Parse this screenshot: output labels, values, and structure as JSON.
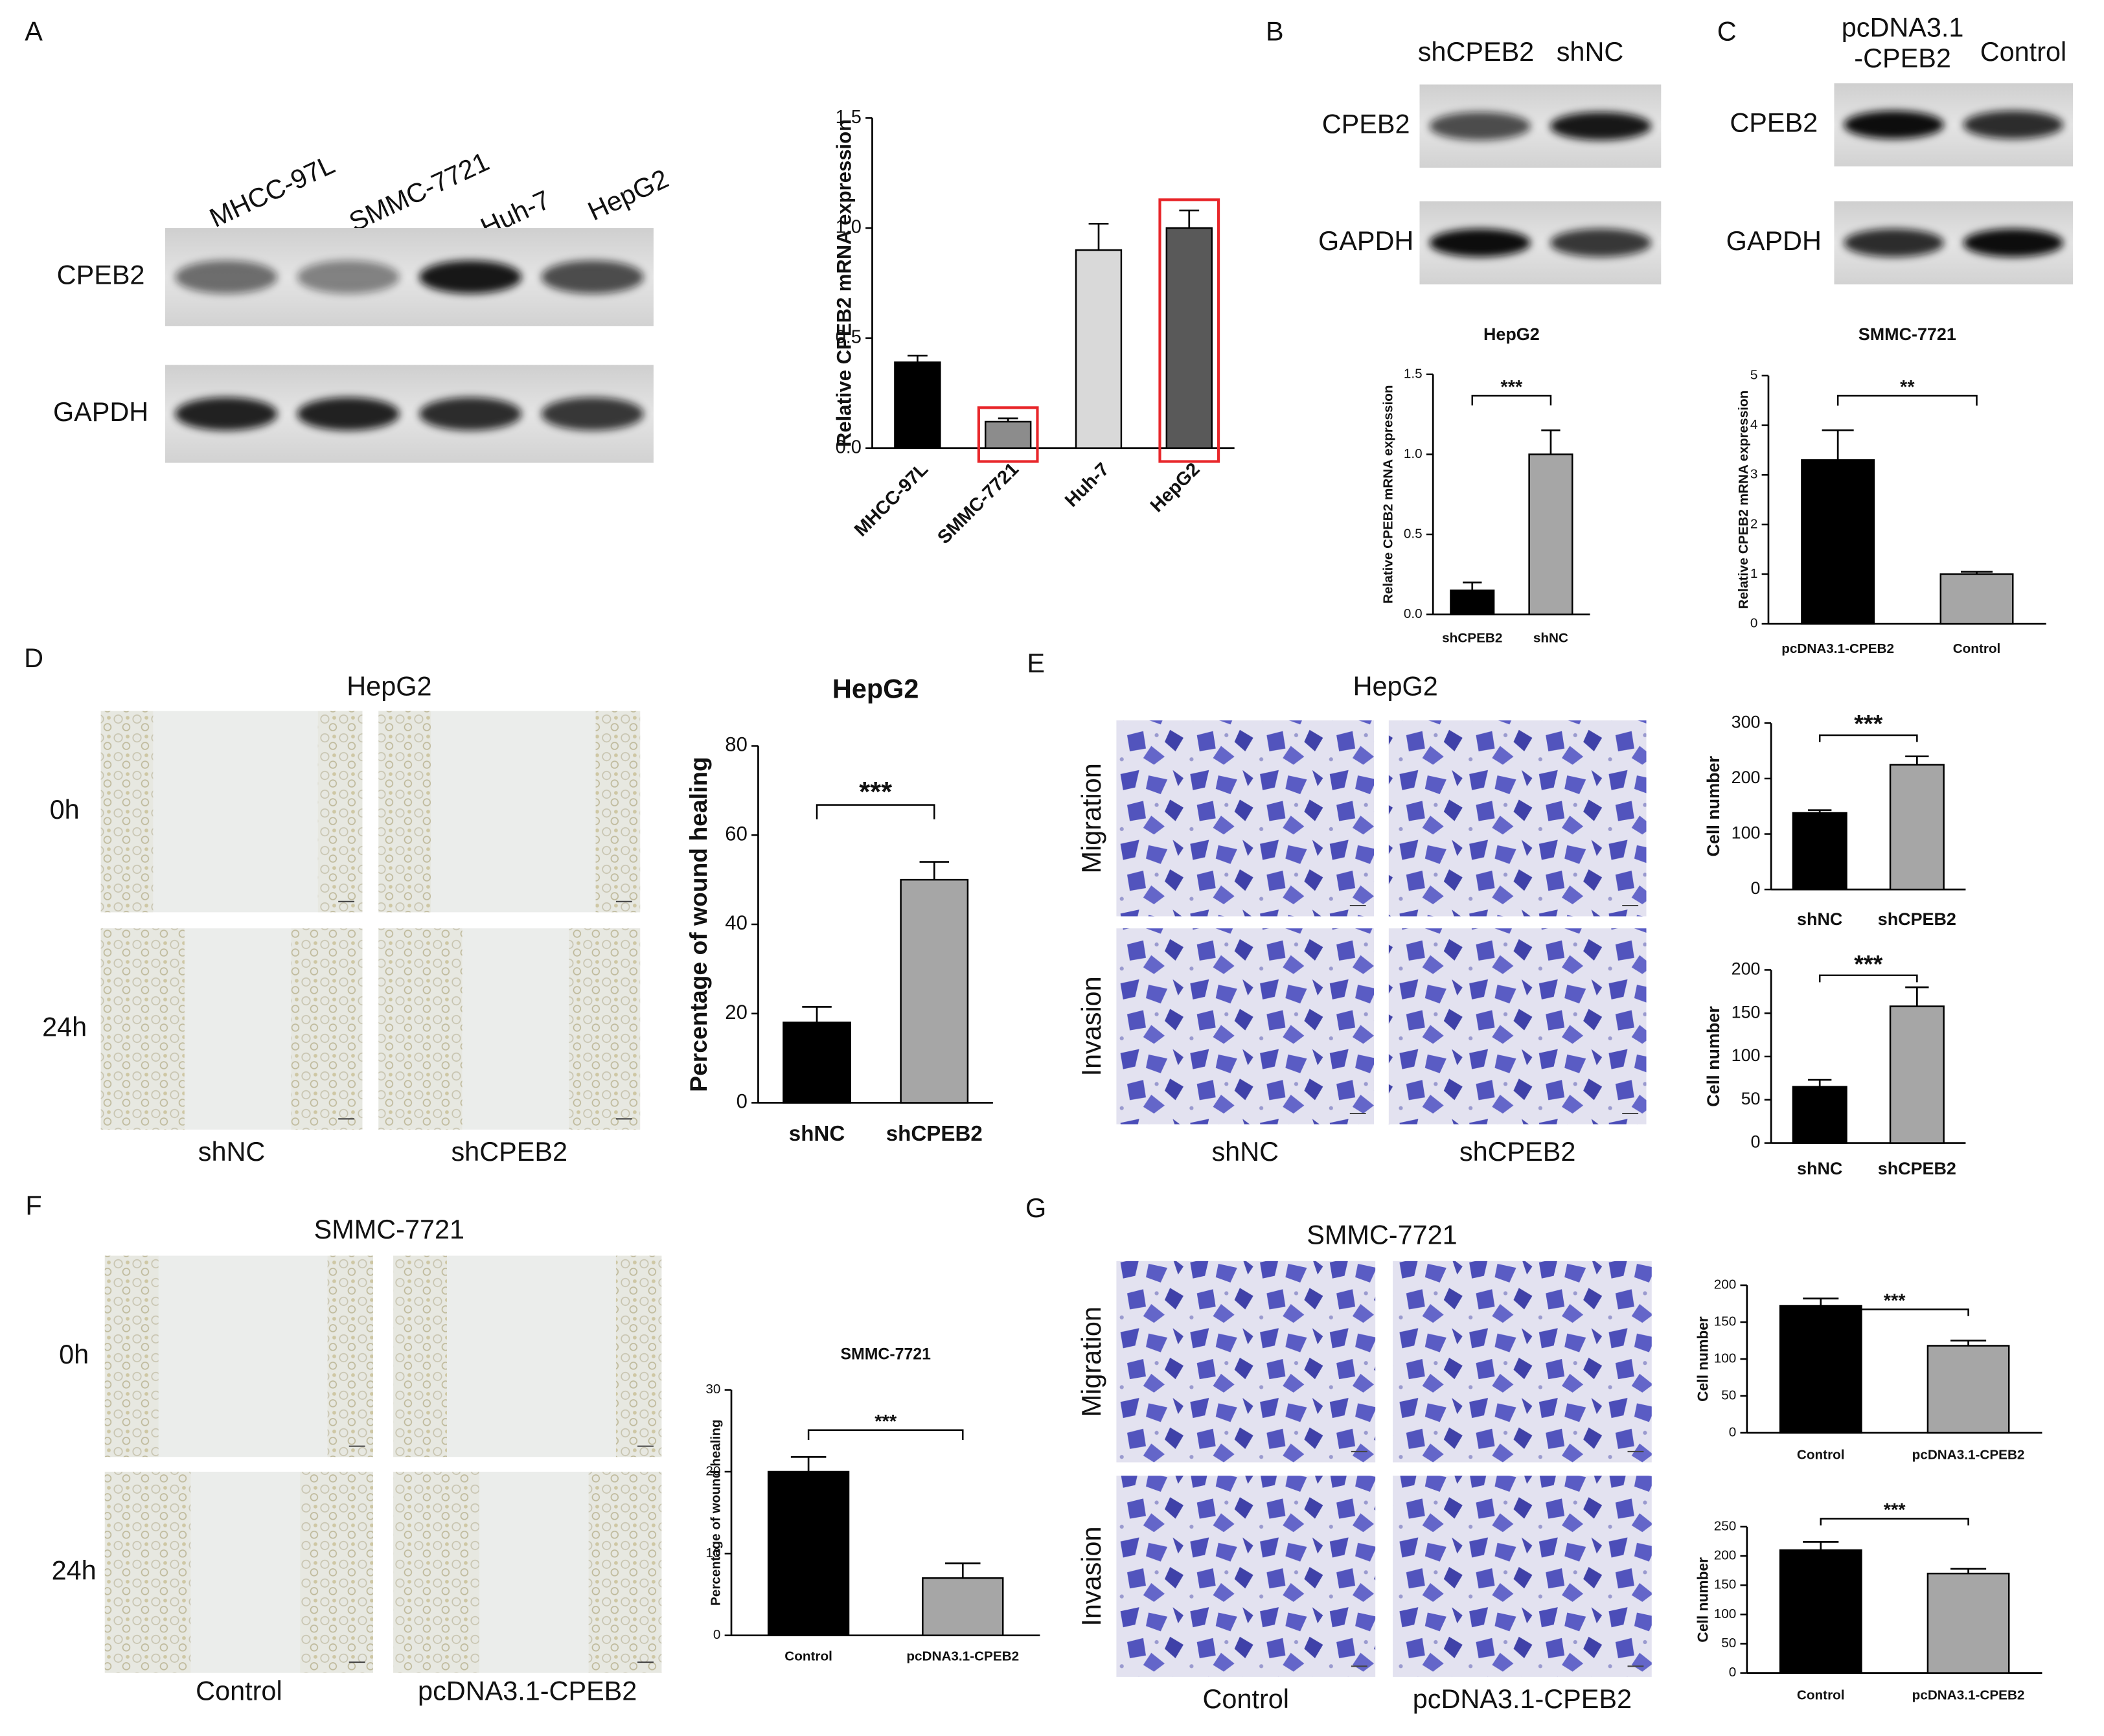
{
  "chart_data": [
    {
      "type": "bar",
      "y_label": "Relative CPEB2 mRNA expression",
      "categories": [
        "MHCC-97L",
        "SMMC-7721",
        "Huh-7",
        "HepG2"
      ],
      "values": [
        0.39,
        0.12,
        0.9,
        1.0
      ],
      "errors": [
        0.03,
        0.015,
        0.12,
        0.08
      ],
      "colors": [
        "#000000",
        "#8c8c8c",
        "#d9d9d9",
        "#595959"
      ],
      "ylim": [
        0,
        1.5
      ],
      "yticks": [
        {
          "value": 0,
          "label": "0.0"
        },
        {
          "value": 0.5,
          "label": "0.5"
        },
        {
          "value": 1,
          "label": "1.0"
        },
        {
          "value": 1.5,
          "label": "1.5"
        }
      ],
      "highlight": [
        1,
        3
      ],
      "highlight_color": "#e8262a"
    },
    {
      "type": "bar",
      "title": "HepG2",
      "y_label": "Relative CPEB2 mRNA expression",
      "categories": [
        "shCPEB2",
        "shNC"
      ],
      "values": [
        0.15,
        1.0
      ],
      "errors": [
        0.05,
        0.15
      ],
      "colors": [
        "#000000",
        "#a6a6a6"
      ],
      "ylim": [
        0,
        1.5
      ],
      "yticks": [
        {
          "value": 0,
          "label": "0.0"
        },
        {
          "value": 0.5,
          "label": "0.5"
        },
        {
          "value": 1,
          "label": "1.0"
        },
        {
          "value": 1.5,
          "label": "1.5"
        }
      ],
      "annotation": "***"
    },
    {
      "type": "bar",
      "title": "SMMC-7721",
      "y_label": "Relative CPEB2 mRNA expression",
      "categories": [
        "pcDNA3.1-CPEB2",
        "Control"
      ],
      "values": [
        3.3,
        1.0
      ],
      "errors": [
        0.6,
        0.05
      ],
      "colors": [
        "#000000",
        "#a6a6a6"
      ],
      "ylim": [
        0,
        5
      ],
      "yticks": [
        0,
        1,
        2,
        3,
        4,
        5
      ],
      "annotation": "**"
    },
    {
      "type": "bar",
      "title": "HepG2",
      "y_label": "Percentage of wound healing",
      "categories": [
        "shNC",
        "shCPEB2"
      ],
      "values": [
        18,
        50
      ],
      "errors": [
        3.5,
        4
      ],
      "colors": [
        "#000000",
        "#a6a6a6"
      ],
      "ylim": [
        0,
        80
      ],
      "yticks": [
        0,
        20,
        40,
        60,
        80
      ],
      "annotation": "***"
    },
    {
      "type": "bar",
      "y_label": "Cell number",
      "categories": [
        "shNC",
        "shCPEB2"
      ],
      "values": [
        138,
        225
      ],
      "errors": [
        5,
        15
      ],
      "colors": [
        "#000000",
        "#a6a6a6"
      ],
      "ylim": [
        0,
        300
      ],
      "yticks": [
        0,
        100,
        200,
        300
      ],
      "annotation": "***"
    },
    {
      "type": "bar",
      "y_label": "Cell number",
      "categories": [
        "shNC",
        "shCPEB2"
      ],
      "values": [
        65,
        158
      ],
      "errors": [
        8,
        22
      ],
      "colors": [
        "#000000",
        "#a6a6a6"
      ],
      "ylim": [
        0,
        200
      ],
      "yticks": [
        0,
        50,
        100,
        150,
        200
      ],
      "annotation": "***"
    },
    {
      "type": "bar",
      "title": "SMMC-7721",
      "y_label": "Percentage of wound healing",
      "categories": [
        "Control",
        "pcDNA3.1-CPEB2"
      ],
      "values": [
        20,
        7
      ],
      "errors": [
        1.8,
        1.8
      ],
      "colors": [
        "#000000",
        "#a6a6a6"
      ],
      "ylim": [
        0,
        30
      ],
      "yticks": [
        0,
        10,
        20,
        30
      ],
      "annotation": "***"
    },
    {
      "type": "bar",
      "y_label": "Cell number",
      "categories": [
        "Control",
        "pcDNA3.1-CPEB2"
      ],
      "values": [
        172,
        118
      ],
      "errors": [
        10,
        7
      ],
      "colors": [
        "#000000",
        "#a6a6a6"
      ],
      "ylim": [
        0,
        200
      ],
      "yticks": [
        0,
        50,
        100,
        150,
        200
      ],
      "annotation": "***"
    },
    {
      "type": "bar",
      "y_label": "Cell number",
      "categories": [
        "Control",
        "pcDNA3.1-CPEB2"
      ],
      "values": [
        210,
        170
      ],
      "errors": [
        14,
        8
      ],
      "colors": [
        "#000000",
        "#a6a6a6"
      ],
      "ylim": [
        0,
        250
      ],
      "yticks": [
        0,
        50,
        100,
        150,
        200,
        250
      ],
      "annotation": "***"
    }
  ],
  "blots": [
    {
      "panel": "A",
      "lanes": [
        [
          "MHCC-97L"
        ],
        [
          "SMMC-7721"
        ],
        [
          "Huh-7"
        ],
        [
          "HepG2"
        ]
      ],
      "rows": [
        "CPEB2",
        "GAPDH"
      ]
    },
    {
      "panel": "B",
      "lanes": [
        [
          "shCPEB2"
        ],
        [
          "shNC"
        ]
      ],
      "rows": [
        "CPEB2",
        "GAPDH"
      ]
    },
    {
      "panel": "C",
      "lanes": [
        [
          "pcDNA3.1",
          "-CPEB2"
        ],
        [
          "Control"
        ]
      ],
      "rows": [
        "CPEB2",
        "GAPDH"
      ]
    }
  ],
  "assays": [
    {
      "panel": "D",
      "title": "HepG2",
      "rows": [
        "0h",
        "24h"
      ],
      "columns": [
        "shNC",
        "shCPEB2"
      ]
    },
    {
      "panel": "E",
      "title": "HepG2",
      "rows": [
        "Migration",
        "Invasion"
      ],
      "columns": [
        "shNC",
        "shCPEB2"
      ]
    },
    {
      "panel": "F",
      "title": "SMMC-7721",
      "rows": [
        "0h",
        "24h"
      ],
      "columns": [
        "Control",
        "pcDNA3.1-CPEB2"
      ]
    },
    {
      "panel": "G",
      "title": "SMMC-7721",
      "rows": [
        "Migration",
        "Invasion"
      ],
      "columns": [
        "Control",
        "pcDNA3.1-CPEB2"
      ]
    }
  ]
}
